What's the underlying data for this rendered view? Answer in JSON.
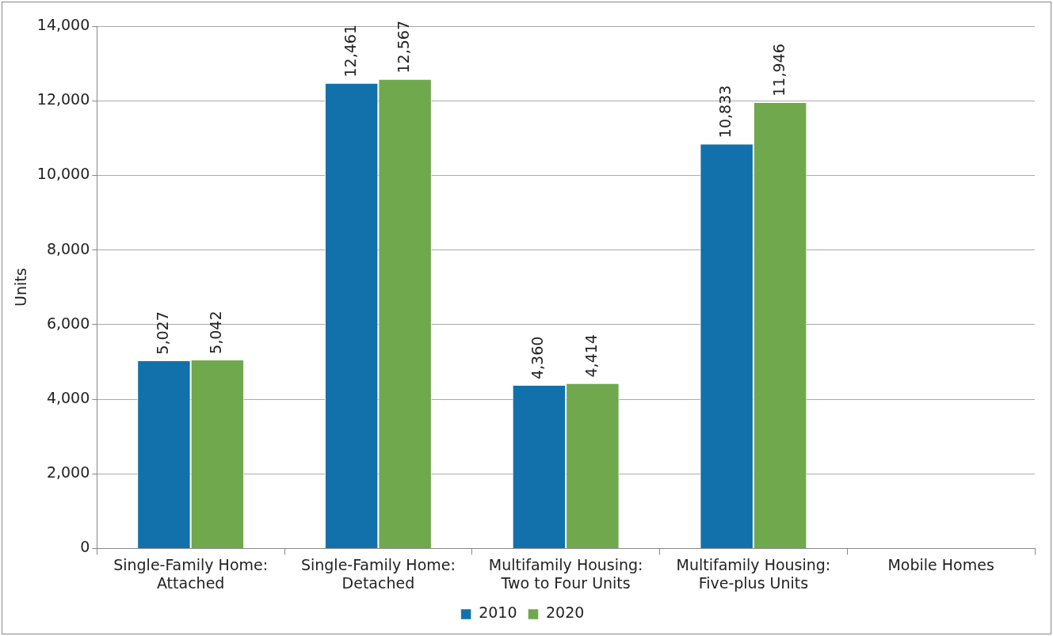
{
  "chart_data": {
    "type": "bar",
    "ylabel": "Units",
    "categories": [
      "Single-Family Home: Attached",
      "Single-Family Home: Detached",
      "Multifamily Housing: Two to Four Units",
      "Multifamily Housing: Five-plus Units",
      "Mobile Homes"
    ],
    "series": [
      {
        "name": "2010",
        "color": "#1271aa",
        "values": [
          5027,
          12461,
          4360,
          10833,
          null
        ],
        "value_labels": [
          "5,027",
          "12,461",
          "4,360",
          "10,833",
          null
        ]
      },
      {
        "name": "2020",
        "color": "#70a84e",
        "values": [
          5042,
          12567,
          4414,
          11946,
          null
        ],
        "value_labels": [
          "5,042",
          "12,567",
          "4,414",
          "11,946",
          null
        ]
      }
    ],
    "ylim": [
      0,
      14000
    ],
    "yticks": [
      {
        "value": 0,
        "label": "0"
      },
      {
        "value": 2000,
        "label": "2,000"
      },
      {
        "value": 4000,
        "label": "4,000"
      },
      {
        "value": 6000,
        "label": "6,000"
      },
      {
        "value": 8000,
        "label": "8,000"
      },
      {
        "value": 10000,
        "label": "10,000"
      },
      {
        "value": 12000,
        "label": "12,000"
      },
      {
        "value": 14000,
        "label": "14,000"
      }
    ],
    "grid": "y",
    "legend": "bottom"
  }
}
